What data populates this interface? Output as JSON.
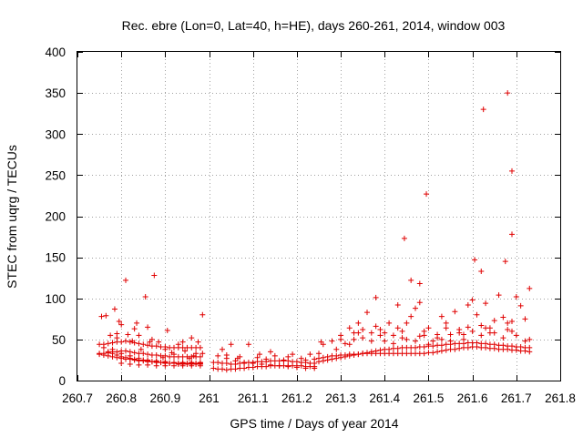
{
  "chart_data": {
    "type": "scatter",
    "title": "Rec. ebre (Lon=0, Lat=40, h=HE), days 260-261, 2014, window 003",
    "xlabel": "GPS time / Days of year 2014",
    "ylabel": "STEC from uqrg / TECUs",
    "xlim": [
      260.7,
      261.8
    ],
    "ylim": [
      0,
      400
    ],
    "xticks": [
      260.7,
      260.8,
      260.9,
      261,
      261.1,
      261.2,
      261.3,
      261.4,
      261.5,
      261.6,
      261.7,
      261.8
    ],
    "xtick_labels": [
      "260.7",
      "260.8",
      "260.9",
      "261",
      "261.1",
      "261.2",
      "261.3",
      "261.4",
      "261.5",
      "261.6",
      "261.7",
      "261.8"
    ],
    "yticks": [
      0,
      50,
      100,
      150,
      200,
      250,
      300,
      350,
      400
    ],
    "ytick_labels": [
      "0",
      "50",
      "100",
      "150",
      "200",
      "250",
      "300",
      "350",
      "400"
    ],
    "grid": true,
    "marker": "+",
    "color": "#e00000",
    "points": [
      [
        260.75,
        44
      ],
      [
        260.76,
        44
      ],
      [
        260.77,
        45
      ],
      [
        260.78,
        46
      ],
      [
        260.79,
        47
      ],
      [
        260.8,
        47
      ],
      [
        260.81,
        48
      ],
      [
        260.82,
        47
      ],
      [
        260.83,
        46
      ],
      [
        260.84,
        45
      ],
      [
        260.85,
        44
      ],
      [
        260.86,
        43
      ],
      [
        260.87,
        42
      ],
      [
        260.88,
        42
      ],
      [
        260.89,
        41
      ],
      [
        260.9,
        41
      ],
      [
        260.91,
        40
      ],
      [
        260.92,
        40
      ],
      [
        260.93,
        40
      ],
      [
        260.94,
        40
      ],
      [
        260.95,
        40
      ],
      [
        260.96,
        40
      ],
      [
        260.97,
        40
      ],
      [
        260.98,
        40
      ],
      [
        260.75,
        33
      ],
      [
        260.76,
        33
      ],
      [
        260.77,
        34
      ],
      [
        260.78,
        35
      ],
      [
        260.79,
        35
      ],
      [
        260.8,
        36
      ],
      [
        260.81,
        36
      ],
      [
        260.82,
        35
      ],
      [
        260.83,
        34
      ],
      [
        260.84,
        33
      ],
      [
        260.85,
        33
      ],
      [
        260.86,
        32
      ],
      [
        260.87,
        31
      ],
      [
        260.88,
        31
      ],
      [
        260.89,
        30
      ],
      [
        260.9,
        30
      ],
      [
        260.91,
        29
      ],
      [
        260.92,
        29
      ],
      [
        260.93,
        29
      ],
      [
        260.94,
        29
      ],
      [
        260.95,
        29
      ],
      [
        260.96,
        29
      ],
      [
        260.97,
        29
      ],
      [
        260.98,
        29
      ],
      [
        260.75,
        32
      ],
      [
        260.76,
        31
      ],
      [
        260.77,
        30
      ],
      [
        260.78,
        29
      ],
      [
        260.79,
        28
      ],
      [
        260.8,
        27
      ],
      [
        260.81,
        26
      ],
      [
        260.82,
        26
      ],
      [
        260.83,
        25
      ],
      [
        260.84,
        24
      ],
      [
        260.85,
        24
      ],
      [
        260.86,
        23
      ],
      [
        260.87,
        23
      ],
      [
        260.88,
        22
      ],
      [
        260.89,
        22
      ],
      [
        260.9,
        21
      ],
      [
        260.91,
        21
      ],
      [
        260.92,
        21
      ],
      [
        260.93,
        20
      ],
      [
        260.94,
        20
      ],
      [
        260.95,
        20
      ],
      [
        260.96,
        20
      ],
      [
        260.97,
        20
      ],
      [
        260.98,
        20
      ],
      [
        260.77,
        35
      ],
      [
        260.78,
        33
      ],
      [
        260.79,
        31
      ],
      [
        260.8,
        29
      ],
      [
        260.81,
        28
      ],
      [
        260.82,
        27
      ],
      [
        260.83,
        26
      ],
      [
        260.84,
        25
      ],
      [
        260.85,
        25
      ],
      [
        260.86,
        24
      ],
      [
        260.87,
        23
      ],
      [
        260.88,
        23
      ],
      [
        260.89,
        22
      ],
      [
        260.9,
        22
      ],
      [
        260.91,
        21
      ],
      [
        260.92,
        21
      ],
      [
        260.93,
        21
      ],
      [
        260.94,
        21
      ],
      [
        260.95,
        21
      ],
      [
        260.96,
        21
      ],
      [
        260.97,
        21
      ],
      [
        260.98,
        21
      ],
      [
        260.76,
        40
      ],
      [
        260.78,
        38
      ],
      [
        260.8,
        33
      ],
      [
        260.82,
        30
      ],
      [
        260.84,
        27
      ],
      [
        260.86,
        25
      ],
      [
        260.88,
        24
      ],
      [
        260.9,
        23
      ],
      [
        260.92,
        22
      ],
      [
        260.94,
        22
      ],
      [
        260.96,
        22
      ],
      [
        260.98,
        22
      ],
      [
        260.8,
        21
      ],
      [
        260.82,
        20
      ],
      [
        260.84,
        19
      ],
      [
        260.86,
        19
      ],
      [
        260.88,
        18
      ],
      [
        260.9,
        18
      ],
      [
        260.92,
        18
      ],
      [
        260.94,
        18
      ],
      [
        260.96,
        18
      ],
      [
        260.98,
        18
      ],
      [
        260.755,
        78
      ],
      [
        260.765,
        79
      ],
      [
        260.775,
        55
      ],
      [
        260.785,
        87
      ],
      [
        260.79,
        52
      ],
      [
        260.795,
        72
      ],
      [
        260.8,
        68
      ],
      [
        260.81,
        122
      ],
      [
        260.815,
        56
      ],
      [
        260.825,
        48
      ],
      [
        260.835,
        70
      ],
      [
        260.845,
        38
      ],
      [
        260.855,
        102
      ],
      [
        260.86,
        65
      ],
      [
        260.87,
        50
      ],
      [
        260.875,
        128
      ],
      [
        260.885,
        47
      ],
      [
        260.9,
        38
      ],
      [
        260.905,
        61
      ],
      [
        260.92,
        32
      ],
      [
        260.93,
        44
      ],
      [
        260.94,
        47
      ],
      [
        260.955,
        27
      ],
      [
        260.965,
        30
      ],
      [
        260.975,
        47
      ],
      [
        260.985,
        80
      ],
      [
        260.985,
        33
      ],
      [
        260.79,
        57
      ],
      [
        260.83,
        63
      ],
      [
        260.84,
        55
      ],
      [
        260.865,
        47
      ],
      [
        260.895,
        28
      ],
      [
        260.915,
        34
      ],
      [
        260.945,
        36
      ],
      [
        260.96,
        52
      ],
      [
        260.97,
        33
      ],
      [
        261.01,
        15
      ],
      [
        261.02,
        14
      ],
      [
        261.03,
        14
      ],
      [
        261.04,
        13
      ],
      [
        261.05,
        14
      ],
      [
        261.06,
        14
      ],
      [
        261.07,
        15
      ],
      [
        261.08,
        15
      ],
      [
        261.09,
        16
      ],
      [
        261.1,
        16
      ],
      [
        261.11,
        17
      ],
      [
        261.12,
        17
      ],
      [
        261.13,
        17
      ],
      [
        261.14,
        18
      ],
      [
        261.15,
        18
      ],
      [
        261.16,
        18
      ],
      [
        261.17,
        18
      ],
      [
        261.18,
        18
      ],
      [
        261.19,
        18
      ],
      [
        261.2,
        18
      ],
      [
        261.21,
        18
      ],
      [
        261.22,
        17
      ],
      [
        261.23,
        17
      ],
      [
        261.24,
        17
      ],
      [
        261.01,
        22
      ],
      [
        261.02,
        22
      ],
      [
        261.03,
        21
      ],
      [
        261.04,
        21
      ],
      [
        261.05,
        20
      ],
      [
        261.06,
        20
      ],
      [
        261.07,
        21
      ],
      [
        261.08,
        21
      ],
      [
        261.09,
        22
      ],
      [
        261.1,
        22
      ],
      [
        261.11,
        23
      ],
      [
        261.12,
        23
      ],
      [
        261.13,
        23
      ],
      [
        261.14,
        24
      ],
      [
        261.15,
        24
      ],
      [
        261.16,
        24
      ],
      [
        261.17,
        24
      ],
      [
        261.18,
        24
      ],
      [
        261.19,
        23
      ],
      [
        261.2,
        23
      ],
      [
        261.21,
        22
      ],
      [
        261.22,
        22
      ],
      [
        261.23,
        21
      ],
      [
        261.24,
        21
      ],
      [
        261.02,
        30
      ],
      [
        261.04,
        27
      ],
      [
        261.06,
        24
      ],
      [
        261.08,
        22
      ],
      [
        261.1,
        21
      ],
      [
        261.12,
        20
      ],
      [
        261.14,
        19
      ],
      [
        261.16,
        18
      ],
      [
        261.18,
        17
      ],
      [
        261.2,
        16
      ],
      [
        261.22,
        15
      ],
      [
        261.24,
        15
      ],
      [
        261.03,
        38
      ],
      [
        261.05,
        44
      ],
      [
        261.07,
        29
      ],
      [
        261.09,
        44
      ],
      [
        261.11,
        28
      ],
      [
        261.13,
        26
      ],
      [
        261.15,
        30
      ],
      [
        261.17,
        25
      ],
      [
        261.19,
        32
      ],
      [
        261.21,
        27
      ],
      [
        261.23,
        32
      ],
      [
        261.25,
        33
      ],
      [
        261.14,
        35
      ],
      [
        261.04,
        31
      ],
      [
        261.065,
        27
      ],
      [
        261.115,
        32
      ],
      [
        261.18,
        29
      ],
      [
        261.22,
        25
      ],
      [
        261.255,
        47
      ],
      [
        261.24,
        26
      ],
      [
        261.25,
        27
      ],
      [
        261.26,
        28
      ],
      [
        261.27,
        29
      ],
      [
        261.28,
        30
      ],
      [
        261.29,
        30
      ],
      [
        261.3,
        31
      ],
      [
        261.31,
        31
      ],
      [
        261.32,
        32
      ],
      [
        261.33,
        32
      ],
      [
        261.34,
        32
      ],
      [
        261.35,
        33
      ],
      [
        261.36,
        33
      ],
      [
        261.37,
        33
      ],
      [
        261.38,
        33
      ],
      [
        261.39,
        33
      ],
      [
        261.4,
        33
      ],
      [
        261.41,
        33
      ],
      [
        261.42,
        33
      ],
      [
        261.43,
        33
      ],
      [
        261.44,
        33
      ],
      [
        261.45,
        33
      ],
      [
        261.46,
        33
      ],
      [
        261.47,
        33
      ],
      [
        261.48,
        33
      ],
      [
        261.49,
        33
      ],
      [
        261.5,
        34
      ],
      [
        261.51,
        34
      ],
      [
        261.52,
        35
      ],
      [
        261.53,
        36
      ],
      [
        261.54,
        37
      ],
      [
        261.55,
        38
      ],
      [
        261.56,
        38
      ],
      [
        261.57,
        39
      ],
      [
        261.58,
        40
      ],
      [
        261.59,
        40
      ],
      [
        261.6,
        41
      ],
      [
        261.61,
        41
      ],
      [
        261.62,
        40
      ],
      [
        261.63,
        40
      ],
      [
        261.64,
        39
      ],
      [
        261.65,
        39
      ],
      [
        261.66,
        38
      ],
      [
        261.67,
        38
      ],
      [
        261.68,
        38
      ],
      [
        261.69,
        37
      ],
      [
        261.7,
        37
      ],
      [
        261.71,
        36
      ],
      [
        261.72,
        36
      ],
      [
        261.73,
        35
      ],
      [
        261.25,
        23
      ],
      [
        261.26,
        24
      ],
      [
        261.27,
        25
      ],
      [
        261.28,
        26
      ],
      [
        261.29,
        27
      ],
      [
        261.3,
        28
      ],
      [
        261.31,
        29
      ],
      [
        261.32,
        30
      ],
      [
        261.33,
        31
      ],
      [
        261.34,
        32
      ],
      [
        261.35,
        33
      ],
      [
        261.36,
        34
      ],
      [
        261.37,
        35
      ],
      [
        261.38,
        36
      ],
      [
        261.39,
        37
      ],
      [
        261.4,
        38
      ],
      [
        261.41,
        38
      ],
      [
        261.42,
        39
      ],
      [
        261.43,
        39
      ],
      [
        261.44,
        40
      ],
      [
        261.45,
        40
      ],
      [
        261.46,
        40
      ],
      [
        261.47,
        40
      ],
      [
        261.48,
        41
      ],
      [
        261.49,
        41
      ],
      [
        261.5,
        42
      ],
      [
        261.51,
        42
      ],
      [
        261.52,
        43
      ],
      [
        261.53,
        43
      ],
      [
        261.54,
        44
      ],
      [
        261.55,
        44
      ],
      [
        261.56,
        45
      ],
      [
        261.57,
        45
      ],
      [
        261.58,
        45
      ],
      [
        261.59,
        46
      ],
      [
        261.6,
        46
      ],
      [
        261.61,
        46
      ],
      [
        261.62,
        45
      ],
      [
        261.63,
        45
      ],
      [
        261.64,
        44
      ],
      [
        261.65,
        44
      ],
      [
        261.66,
        43
      ],
      [
        261.67,
        43
      ],
      [
        261.68,
        42
      ],
      [
        261.69,
        42
      ],
      [
        261.7,
        41
      ],
      [
        261.71,
        41
      ],
      [
        261.72,
        40
      ],
      [
        261.73,
        40
      ],
      [
        261.26,
        44
      ],
      [
        261.28,
        48
      ],
      [
        261.3,
        55
      ],
      [
        261.31,
        45
      ],
      [
        261.32,
        64
      ],
      [
        261.33,
        50
      ],
      [
        261.34,
        70
      ],
      [
        261.35,
        52
      ],
      [
        261.36,
        83
      ],
      [
        261.37,
        58
      ],
      [
        261.38,
        101
      ],
      [
        261.39,
        62
      ],
      [
        261.4,
        48
      ],
      [
        261.41,
        70
      ],
      [
        261.42,
        55
      ],
      [
        261.43,
        92
      ],
      [
        261.44,
        60
      ],
      [
        261.45,
        50
      ],
      [
        261.46,
        78
      ],
      [
        261.47,
        88
      ],
      [
        261.48,
        95
      ],
      [
        261.49,
        55
      ],
      [
        261.5,
        64
      ],
      [
        261.51,
        48
      ],
      [
        261.52,
        52
      ],
      [
        261.53,
        78
      ],
      [
        261.54,
        64
      ],
      [
        261.55,
        56
      ],
      [
        261.56,
        84
      ],
      [
        261.57,
        62
      ],
      [
        261.58,
        50
      ],
      [
        261.59,
        92
      ],
      [
        261.6,
        98
      ],
      [
        261.61,
        80
      ],
      [
        261.62,
        67
      ],
      [
        261.63,
        94
      ],
      [
        261.64,
        58
      ],
      [
        261.65,
        73
      ],
      [
        261.66,
        104
      ],
      [
        261.67,
        77
      ],
      [
        261.68,
        62
      ],
      [
        261.69,
        72
      ],
      [
        261.7,
        102
      ],
      [
        261.71,
        91
      ],
      [
        261.72,
        75
      ],
      [
        261.73,
        112
      ],
      [
        261.29,
        38
      ],
      [
        261.32,
        44
      ],
      [
        261.34,
        58
      ],
      [
        261.37,
        48
      ],
      [
        261.39,
        55
      ],
      [
        261.42,
        45
      ],
      [
        261.44,
        52
      ],
      [
        261.47,
        48
      ],
      [
        261.49,
        60
      ],
      [
        261.52,
        56
      ],
      [
        261.54,
        70
      ],
      [
        261.57,
        58
      ],
      [
        261.59,
        65
      ],
      [
        261.62,
        55
      ],
      [
        261.64,
        64
      ],
      [
        261.67,
        52
      ],
      [
        261.69,
        60
      ],
      [
        261.72,
        48
      ],
      [
        261.3,
        50
      ],
      [
        261.33,
        58
      ],
      [
        261.35,
        62
      ],
      [
        261.38,
        66
      ],
      [
        261.4,
        58
      ],
      [
        261.43,
        64
      ],
      [
        261.45,
        70
      ],
      [
        261.48,
        54
      ],
      [
        261.5,
        44
      ],
      [
        261.53,
        50
      ],
      [
        261.55,
        48
      ],
      [
        261.58,
        56
      ],
      [
        261.6,
        60
      ],
      [
        261.63,
        64
      ],
      [
        261.65,
        58
      ],
      [
        261.68,
        70
      ],
      [
        261.7,
        55
      ],
      [
        261.73,
        50
      ],
      [
        261.445,
        173
      ],
      [
        261.495,
        227
      ],
      [
        261.46,
        122
      ],
      [
        261.48,
        118
      ],
      [
        261.605,
        147
      ],
      [
        261.62,
        133
      ],
      [
        261.625,
        330
      ],
      [
        261.675,
        145
      ],
      [
        261.68,
        350
      ],
      [
        261.69,
        255
      ],
      [
        261.69,
        178
      ]
    ]
  }
}
